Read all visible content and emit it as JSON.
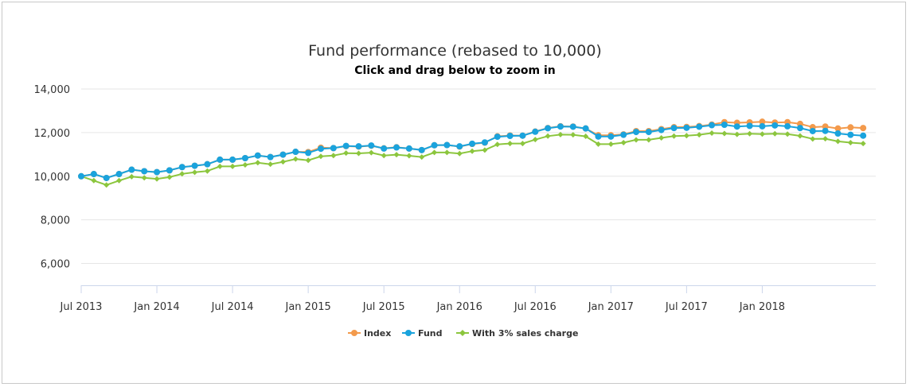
{
  "chart_data": {
    "type": "line",
    "title": "Fund performance (rebased to 10,000)",
    "subtitle": "Click and drag below to zoom in",
    "xlabel": "",
    "ylabel": "",
    "ylim": [
      5000,
      14000
    ],
    "y_ticks": [
      6000,
      8000,
      10000,
      12000,
      14000
    ],
    "y_tick_labels": [
      "6,000",
      "8,000",
      "10,000",
      "12,000",
      "14,000"
    ],
    "x_tick_labels": [
      "Jul 2013",
      "Jan 2014",
      "Jul 2014",
      "Jan 2015",
      "Jul 2015",
      "Jan 2016",
      "Jul 2016",
      "Jan 2017",
      "Jul 2017",
      "Jan 2018"
    ],
    "x_start": "2013-07",
    "x_end": "2018-10",
    "grid": true,
    "legend_position": "bottom-center",
    "series": [
      {
        "name": "Index",
        "color": "#f39a4c",
        "marker": "circle",
        "values": [
          10000,
          10100,
          9920,
          10100,
          10300,
          10230,
          10190,
          10270,
          10420,
          10480,
          10550,
          10760,
          10760,
          10830,
          10950,
          10880,
          10990,
          11120,
          11110,
          11310,
          11290,
          11380,
          11360,
          11400,
          11280,
          11330,
          11270,
          11200,
          11420,
          11430,
          11360,
          11480,
          11540,
          11830,
          11870,
          11860,
          12050,
          12210,
          12290,
          12280,
          12190,
          11880,
          11880,
          11920,
          12070,
          12070,
          12160,
          12250,
          12260,
          12300,
          12370,
          12480,
          12450,
          12470,
          12500,
          12460,
          12480,
          12400,
          12250,
          12280,
          12190,
          12240,
          12210
        ]
      },
      {
        "name": "Fund",
        "color": "#1aa3dd",
        "marker": "circle",
        "values": [
          10000,
          10100,
          9920,
          10100,
          10300,
          10230,
          10190,
          10270,
          10420,
          10480,
          10550,
          10760,
          10760,
          10830,
          10950,
          10880,
          10990,
          11120,
          11070,
          11260,
          11290,
          11390,
          11370,
          11410,
          11270,
          11320,
          11270,
          11200,
          11420,
          11430,
          11370,
          11490,
          11550,
          11810,
          11850,
          11860,
          12040,
          12200,
          12280,
          12270,
          12190,
          11820,
          11820,
          11900,
          12030,
          12030,
          12120,
          12210,
          12220,
          12270,
          12340,
          12360,
          12280,
          12310,
          12290,
          12330,
          12290,
          12210,
          12070,
          12080,
          11960,
          11900,
          11860
        ]
      },
      {
        "name": "With 3% sales charge",
        "color": "#8cc63e",
        "marker": "diamond",
        "values": [
          10000,
          9800,
          9600,
          9800,
          9980,
          9930,
          9880,
          9960,
          10110,
          10180,
          10240,
          10450,
          10450,
          10520,
          10620,
          10550,
          10660,
          10790,
          10730,
          10910,
          10950,
          11060,
          11050,
          11080,
          10950,
          10990,
          10940,
          10880,
          11090,
          11090,
          11040,
          11150,
          11200,
          11460,
          11500,
          11500,
          11680,
          11840,
          11910,
          11900,
          11830,
          11470,
          11470,
          11540,
          11670,
          11670,
          11760,
          11840,
          11860,
          11900,
          11980,
          11960,
          11920,
          11950,
          11930,
          11950,
          11930,
          11850,
          11710,
          11720,
          11600,
          11540,
          11500
        ]
      }
    ]
  }
}
